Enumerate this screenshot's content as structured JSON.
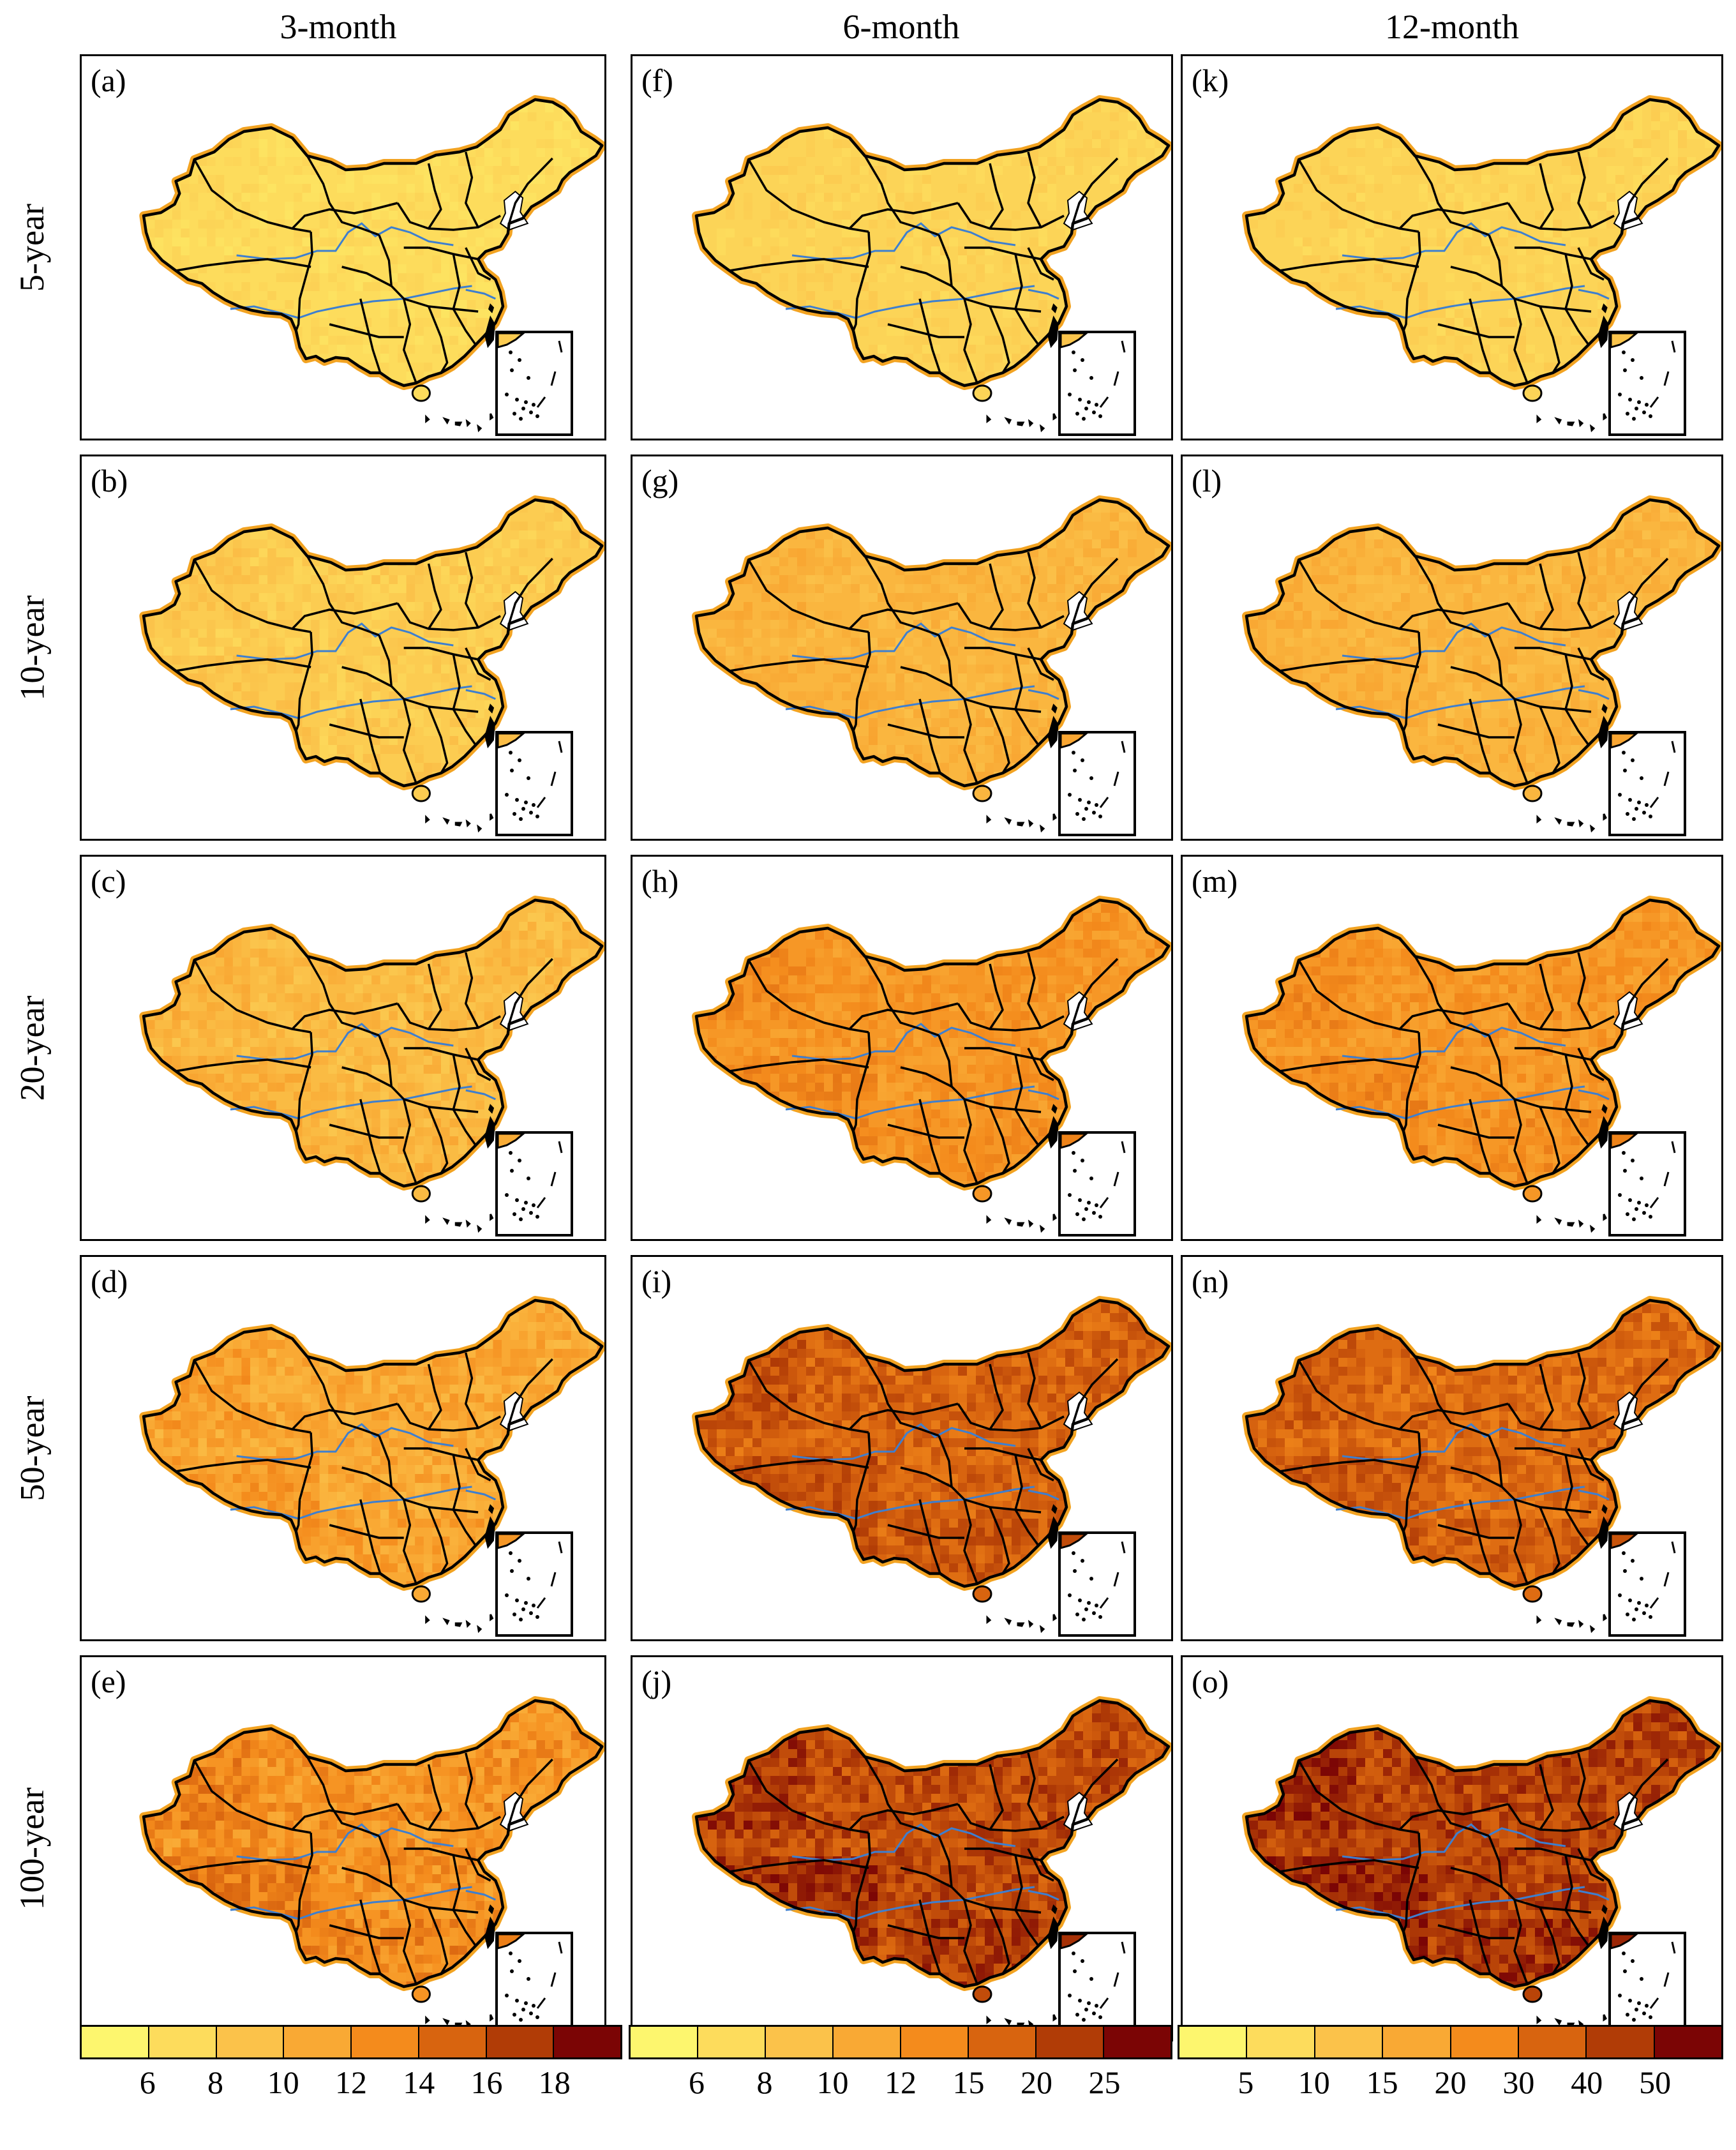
{
  "columns": [
    "3-month",
    "6-month",
    "12-month"
  ],
  "rows": [
    "5-year",
    "10-year",
    "20-year",
    "50-year",
    "100-year"
  ],
  "panel_labels": [
    [
      "(a)",
      "(f)",
      "(k)"
    ],
    [
      "(b)",
      "(g)",
      "(l)"
    ],
    [
      "(c)",
      "(h)",
      "(m)"
    ],
    [
      "(d)",
      "(i)",
      "(n)"
    ],
    [
      "(e)",
      "(j)",
      "(o)"
    ]
  ],
  "colors": {
    "palette": [
      "#fdf66e",
      "#fddc5c",
      "#fbc24a",
      "#f9a934",
      "#f48b1c",
      "#d8640f",
      "#b13c06",
      "#7b0505"
    ],
    "river": "#3d7fd0",
    "border": "#000000",
    "outline_glow": "#f2a322"
  },
  "fill_level": [
    [
      1.0,
      1.3,
      1.3
    ],
    [
      1.6,
      2.5,
      2.5
    ],
    [
      2.3,
      3.6,
      3.6
    ],
    [
      3.0,
      5.0,
      4.8
    ],
    [
      3.7,
      5.6,
      5.8
    ]
  ],
  "colorbars": [
    {
      "ticks": [
        "6",
        "8",
        "10",
        "12",
        "14",
        "16",
        "18"
      ]
    },
    {
      "ticks": [
        "6",
        "8",
        "10",
        "12",
        "15",
        "20",
        "25"
      ]
    },
    {
      "ticks": [
        "5",
        "10",
        "15",
        "20",
        "30",
        "40",
        "50"
      ]
    }
  ]
}
